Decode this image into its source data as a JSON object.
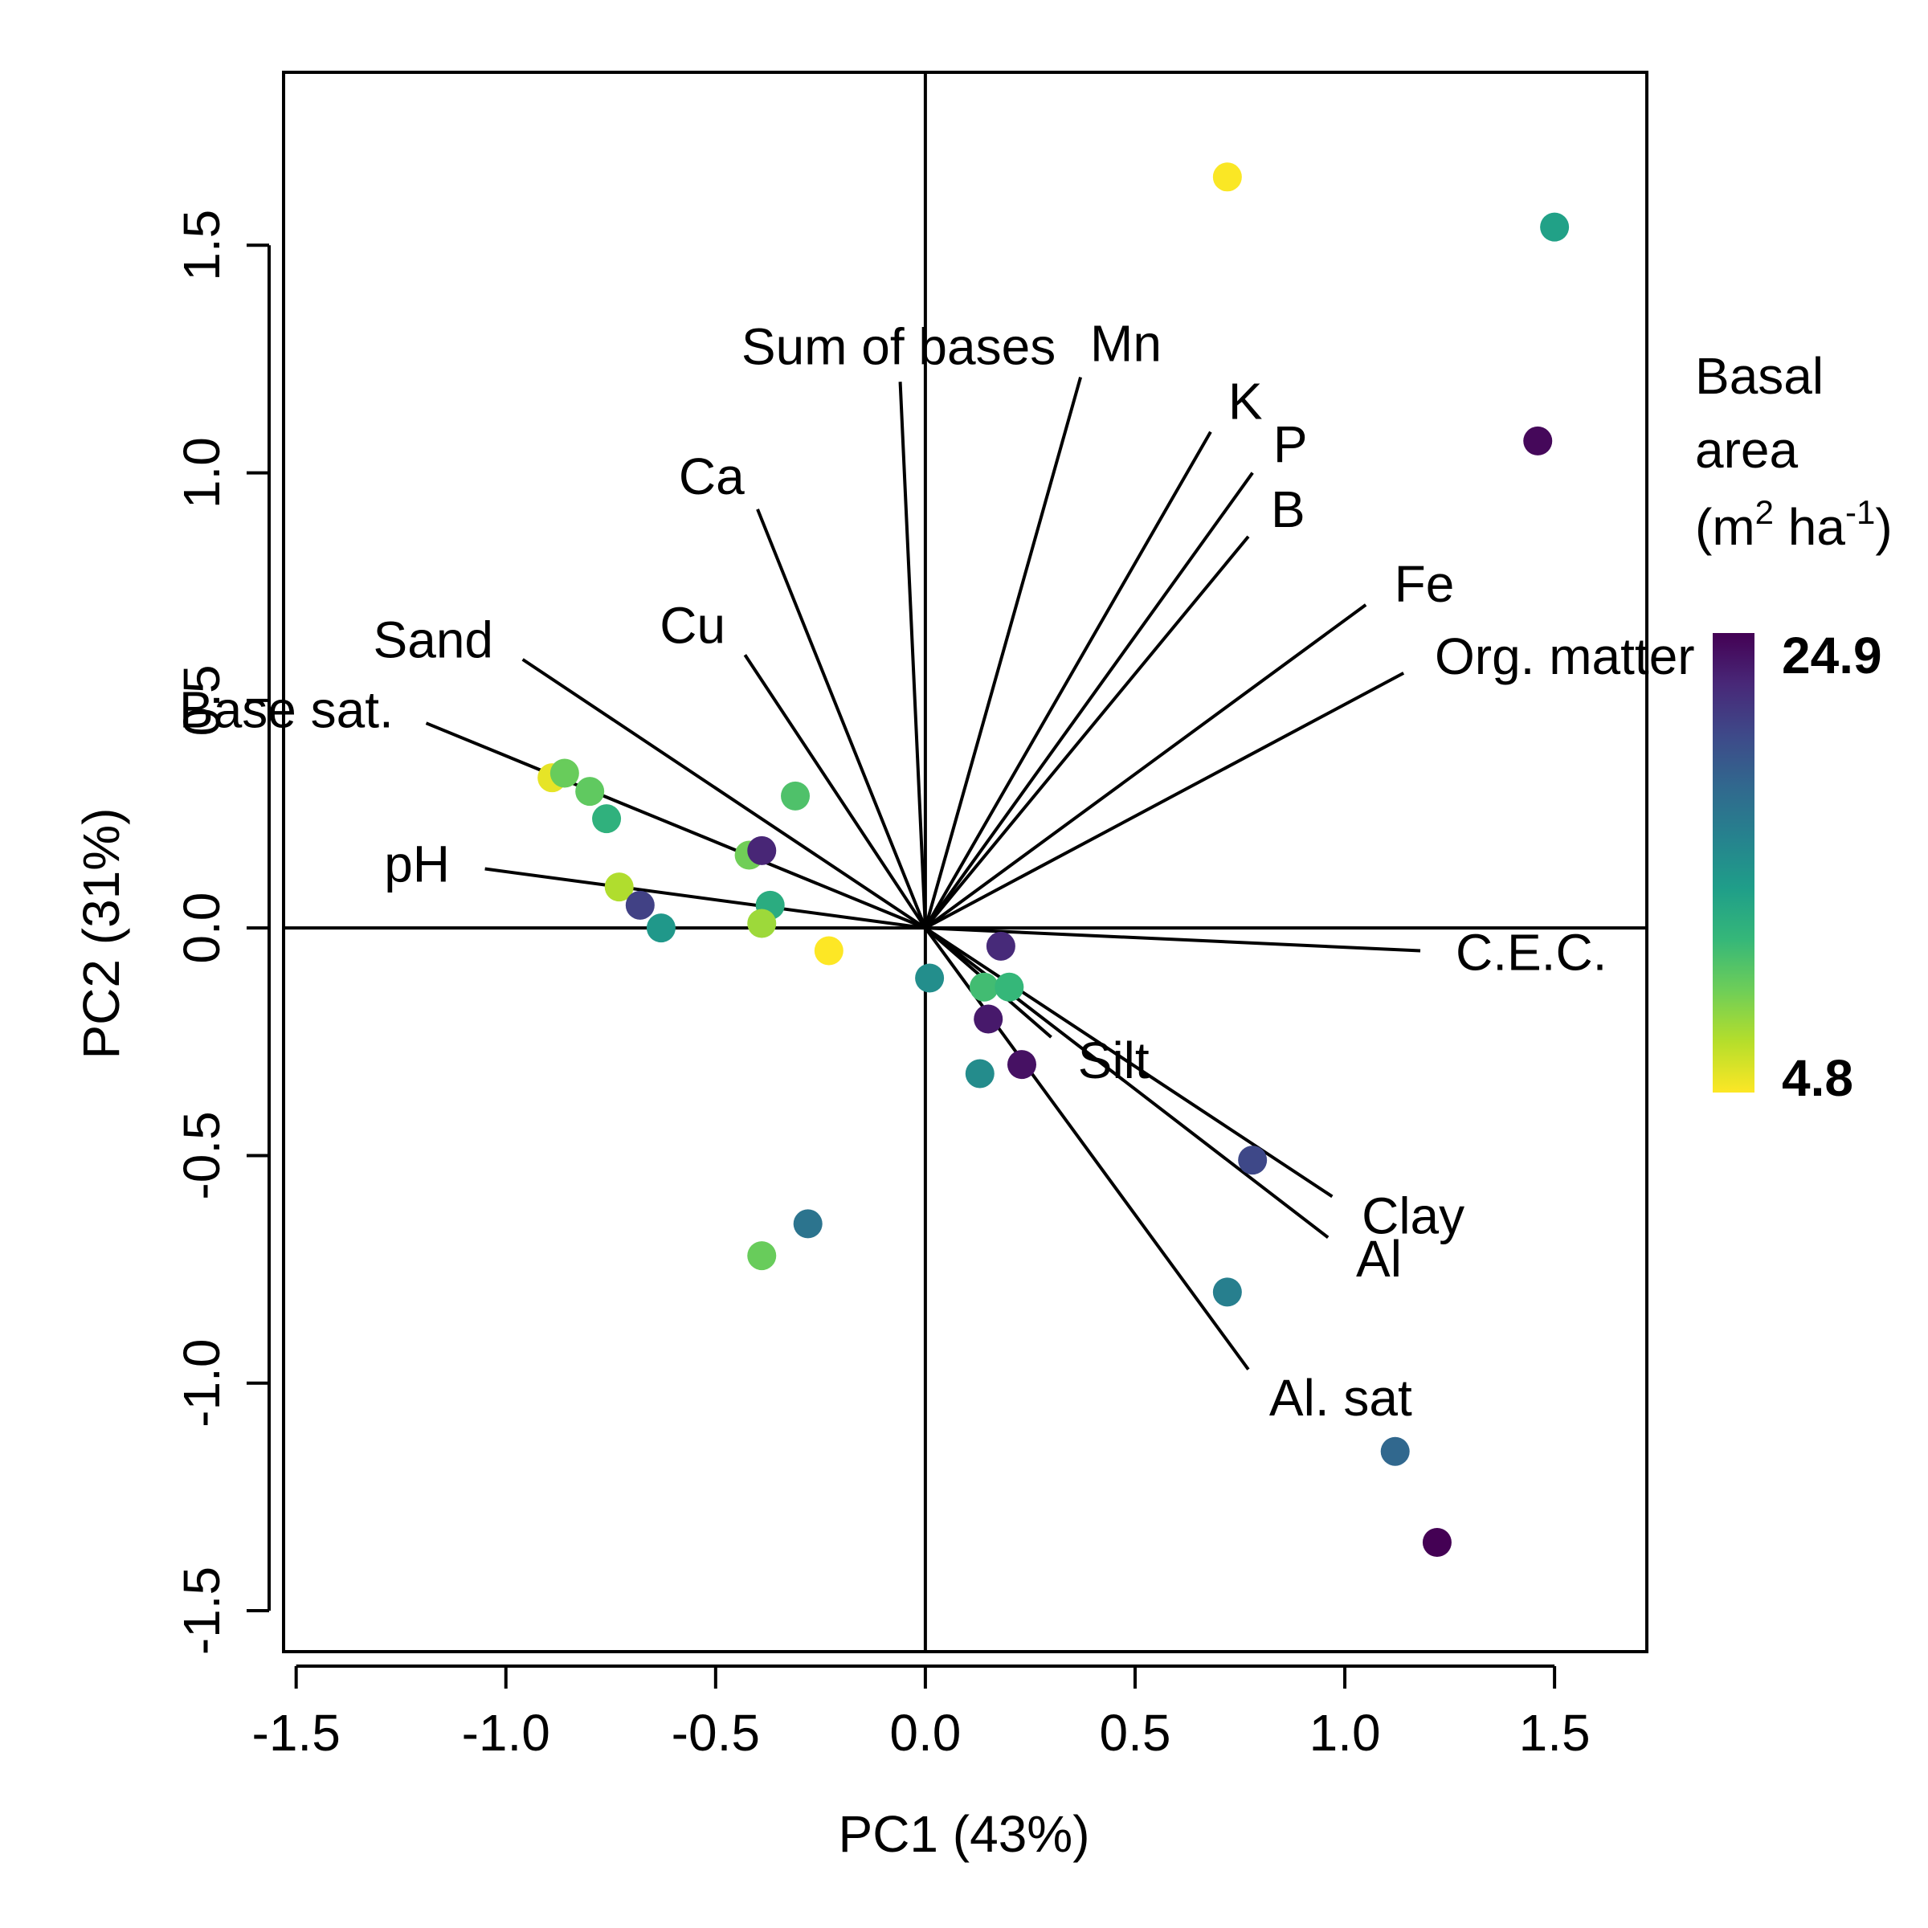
{
  "chart_data": {
    "type": "scatter",
    "subtype": "pca-biplot",
    "xlabel": "PC1 (43%)",
    "ylabel": "PC2 (31%)",
    "xlim": [
      -1.53,
      1.72
    ],
    "ylim": [
      -1.59,
      1.88
    ],
    "x_ticks": [
      "-1.5",
      "-1.0",
      "-0.5",
      "0.0",
      "0.5",
      "1.0",
      "1.5"
    ],
    "y_ticks": [
      "-1.5",
      "-1.0",
      "-0.5",
      "0.0",
      "0.5",
      "1.0",
      "1.5"
    ],
    "reference_lines": {
      "x": 0,
      "y": 0
    },
    "grid": false,
    "legend_placement": "right",
    "color_scale": {
      "title_lines": [
        "Basal",
        "area"
      ],
      "unit": {
        "open": "(m",
        "sup1": "2",
        "mid": " ha",
        "sup2": "-1",
        "close": ")"
      },
      "max_label": "24.9",
      "min_label": "4.8",
      "max": 24.9,
      "min": 4.8,
      "colormap": "viridis",
      "stops": [
        "#fde725",
        "#b5de2b",
        "#6ece58",
        "#35b779",
        "#1f9e89",
        "#26828e",
        "#31688e",
        "#3e4989",
        "#482878",
        "#440154"
      ]
    },
    "loadings": [
      {
        "label": "Sum of bases",
        "x": -0.06,
        "y": 1.2
      },
      {
        "label": "Mn",
        "x": 0.37,
        "y": 1.21
      },
      {
        "label": "K",
        "x": 0.68,
        "y": 1.09
      },
      {
        "label": "P",
        "x": 0.78,
        "y": 1.0
      },
      {
        "label": "B",
        "x": 0.77,
        "y": 0.86
      },
      {
        "label": "Fe",
        "x": 1.05,
        "y": 0.71
      },
      {
        "label": "Org. matter",
        "x": 1.14,
        "y": 0.56
      },
      {
        "label": "Ca",
        "x": -0.4,
        "y": 0.92
      },
      {
        "label": "Cu",
        "x": -0.43,
        "y": 0.6
      },
      {
        "label": "Sand",
        "x": -0.96,
        "y": 0.59
      },
      {
        "label": "Base sat.",
        "x": -1.19,
        "y": 0.45
      },
      {
        "label": "pH",
        "x": -1.05,
        "y": 0.13
      },
      {
        "label": "C.E.C.",
        "x": 1.18,
        "y": -0.05
      },
      {
        "label": "Silt",
        "x": 0.3,
        "y": -0.24
      },
      {
        "label": "Clay",
        "x": 0.97,
        "y": -0.59
      },
      {
        "label": "Al",
        "x": 0.96,
        "y": -0.68
      },
      {
        "label": "Al. sat",
        "x": 0.77,
        "y": -0.97
      }
    ],
    "points": [
      {
        "x": 0.72,
        "y": 1.65,
        "basal_area": 4.9
      },
      {
        "x": 1.5,
        "y": 1.54,
        "basal_area": 13.5
      },
      {
        "x": 1.46,
        "y": 1.07,
        "basal_area": 24.5
      },
      {
        "x": -0.89,
        "y": 0.33,
        "basal_area": 5.5
      },
      {
        "x": -0.86,
        "y": 0.34,
        "basal_area": 9.5
      },
      {
        "x": -0.8,
        "y": 0.3,
        "basal_area": 9.8
      },
      {
        "x": -0.76,
        "y": 0.24,
        "basal_area": 12.0
      },
      {
        "x": -0.31,
        "y": 0.29,
        "basal_area": 10.5
      },
      {
        "x": -0.42,
        "y": 0.16,
        "basal_area": 9.2
      },
      {
        "x": -0.39,
        "y": 0.17,
        "basal_area": 22.8
      },
      {
        "x": -0.37,
        "y": 0.05,
        "basal_area": 12.5
      },
      {
        "x": -0.73,
        "y": 0.09,
        "basal_area": 7.2
      },
      {
        "x": -0.68,
        "y": 0.05,
        "basal_area": 21.0
      },
      {
        "x": -0.63,
        "y": 0.0,
        "basal_area": 14.2
      },
      {
        "x": -0.39,
        "y": 0.01,
        "basal_area": 7.8
      },
      {
        "x": -0.23,
        "y": -0.05,
        "basal_area": 4.8
      },
      {
        "x": 0.01,
        "y": -0.11,
        "basal_area": 15.0
      },
      {
        "x": 0.14,
        "y": -0.13,
        "basal_area": 11.0
      },
      {
        "x": 0.2,
        "y": -0.13,
        "basal_area": 11.5
      },
      {
        "x": 0.18,
        "y": -0.04,
        "basal_area": 22.5
      },
      {
        "x": 0.15,
        "y": -0.2,
        "basal_area": 23.5
      },
      {
        "x": 0.23,
        "y": -0.3,
        "basal_area": 24.0
      },
      {
        "x": 0.13,
        "y": -0.32,
        "basal_area": 15.2
      },
      {
        "x": 0.78,
        "y": -0.51,
        "basal_area": 20.5
      },
      {
        "x": 0.72,
        "y": -0.8,
        "basal_area": 16.2
      },
      {
        "x": -0.28,
        "y": -0.65,
        "basal_area": 17.2
      },
      {
        "x": -0.39,
        "y": -0.72,
        "basal_area": 9.5
      },
      {
        "x": 1.12,
        "y": -1.15,
        "basal_area": 18.2
      },
      {
        "x": 1.22,
        "y": -1.35,
        "basal_area": 24.9
      }
    ]
  }
}
